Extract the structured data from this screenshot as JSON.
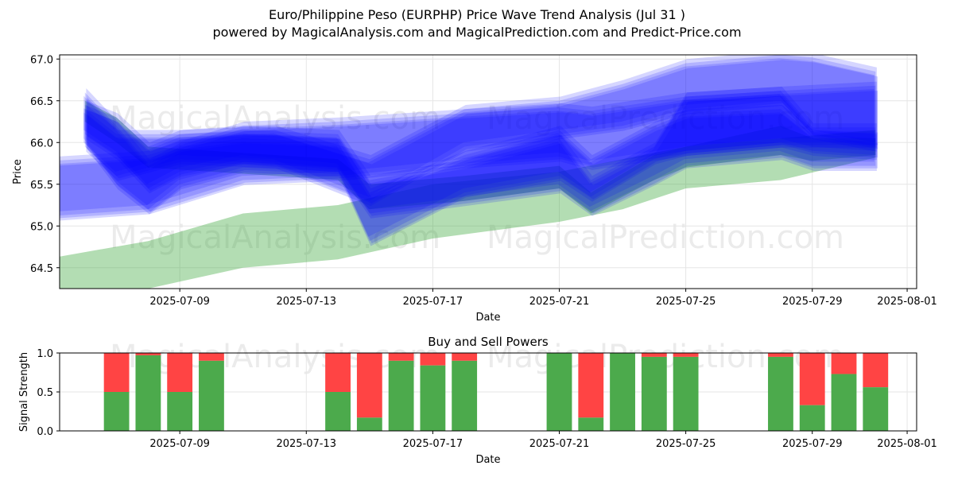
{
  "header": {
    "title": "Euro/Philippine Peso (EURPHP) Price Wave Trend Analysis (Jul 31 )",
    "subtitle": "powered by MagicalAnalysis.com and MagicalPrediction.com and Predict-Price.com"
  },
  "watermarks": [
    "MagicalAnalysis.com",
    "MagicalPrediction.com"
  ],
  "colors": {
    "blue_band": "#0000ff",
    "green_band": "#2ca02c",
    "buy": "#4caa4c",
    "sell": "#ff4444",
    "grid": "#e6e6e6"
  },
  "chart_data": [
    {
      "type": "area",
      "title": "",
      "xlabel": "Date",
      "ylabel": "Price",
      "x_ticks": [
        "2025-07-09",
        "2025-07-13",
        "2025-07-17",
        "2025-07-21",
        "2025-07-25",
        "2025-07-29",
        "2025-08-01"
      ],
      "y_ticks": [
        64.5,
        65.0,
        65.5,
        66.0,
        66.5,
        67.0
      ],
      "xlim": [
        "2025-07-05",
        "2025-08-01"
      ],
      "ylim": [
        64.25,
        67.05
      ],
      "grid": true,
      "series": [
        {
          "color": "blue",
          "x": [
            "2025-07-05",
            "2025-07-08",
            "2025-07-11",
            "2025-07-14",
            "2025-07-18",
            "2025-07-21",
            "2025-07-22",
            "2025-07-25",
            "2025-07-28",
            "2025-07-31"
          ],
          "lower": [
            65.12,
            65.2,
            65.55,
            65.6,
            65.75,
            65.83,
            65.73,
            65.9,
            66.0,
            66.0
          ],
          "upper": [
            65.78,
            65.85,
            66.2,
            66.25,
            66.35,
            66.42,
            66.38,
            66.55,
            66.62,
            66.68
          ]
        },
        {
          "color": "blue",
          "x": [
            "2025-07-06",
            "2025-07-07",
            "2025-07-08",
            "2025-07-09",
            "2025-07-11",
            "2025-07-14",
            "2025-07-15",
            "2025-07-18",
            "2025-07-21",
            "2025-07-22",
            "2025-07-24",
            "2025-07-25",
            "2025-07-28",
            "2025-07-29",
            "2025-07-31"
          ],
          "lower": [
            66.1,
            65.85,
            65.45,
            65.65,
            65.8,
            65.7,
            65.15,
            65.3,
            65.45,
            65.18,
            65.55,
            65.75,
            65.85,
            65.72,
            65.72
          ],
          "upper": [
            66.45,
            66.3,
            65.95,
            66.1,
            66.15,
            66.1,
            65.55,
            65.75,
            66.05,
            65.55,
            65.95,
            66.55,
            66.62,
            66.18,
            66.18
          ]
        },
        {
          "color": "blue",
          "x": [
            "2025-07-06",
            "2025-07-07",
            "2025-07-08",
            "2025-07-09",
            "2025-07-11",
            "2025-07-14",
            "2025-07-15",
            "2025-07-18",
            "2025-07-21",
            "2025-07-22",
            "2025-07-24",
            "2025-07-25",
            "2025-07-28",
            "2025-07-29",
            "2025-07-31"
          ],
          "lower": [
            66.0,
            65.5,
            65.2,
            65.5,
            65.7,
            65.65,
            64.82,
            65.4,
            65.6,
            65.35,
            65.8,
            65.9,
            66.0,
            65.9,
            65.85
          ],
          "upper": [
            66.6,
            66.2,
            65.75,
            65.95,
            66.05,
            66.0,
            65.4,
            65.85,
            66.15,
            65.8,
            66.2,
            66.35,
            66.4,
            66.1,
            66.05
          ]
        },
        {
          "color": "blue",
          "x": [
            "2025-07-06",
            "2025-07-07",
            "2025-07-09",
            "2025-07-12",
            "2025-07-15",
            "2025-07-18",
            "2025-07-21",
            "2025-07-23",
            "2025-07-25",
            "2025-07-28",
            "2025-07-29",
            "2025-07-31"
          ],
          "lower": [
            65.95,
            65.6,
            65.8,
            65.75,
            65.3,
            65.95,
            66.1,
            66.2,
            66.4,
            66.5,
            66.1,
            65.95
          ],
          "upper": [
            66.4,
            66.1,
            66.1,
            66.15,
            65.8,
            66.4,
            66.5,
            66.7,
            66.95,
            67.05,
            67.02,
            66.85
          ]
        },
        {
          "color": "green",
          "x": [
            "2025-07-05",
            "2025-07-08",
            "2025-07-11",
            "2025-07-14",
            "2025-07-17",
            "2025-07-21",
            "2025-07-23",
            "2025-07-25",
            "2025-07-28",
            "2025-07-31"
          ],
          "lower": [
            64.1,
            64.25,
            64.5,
            64.6,
            64.85,
            65.05,
            65.2,
            65.45,
            65.55,
            65.82
          ],
          "upper": [
            64.62,
            64.82,
            65.15,
            65.25,
            65.5,
            65.65,
            65.8,
            65.95,
            66.05,
            66.15
          ]
        },
        {
          "color": "green",
          "x": [
            "2025-07-06",
            "2025-07-07",
            "2025-07-08",
            "2025-07-14",
            "2025-07-15",
            "2025-07-18",
            "2025-07-21",
            "2025-07-22",
            "2025-07-24",
            "2025-07-25",
            "2025-07-28",
            "2025-07-29",
            "2025-07-31"
          ],
          "lower": [
            66.25,
            66.0,
            65.7,
            65.55,
            65.2,
            65.3,
            65.45,
            65.15,
            65.55,
            65.7,
            65.85,
            65.78,
            65.85
          ],
          "upper": [
            66.5,
            66.3,
            65.95,
            65.8,
            65.5,
            65.6,
            65.72,
            65.4,
            65.85,
            65.95,
            66.2,
            66.05,
            66.05
          ]
        }
      ]
    },
    {
      "type": "bar",
      "title": "Buy and Sell Powers",
      "xlabel": "Date",
      "ylabel": "Signal Strength",
      "x_ticks": [
        "2025-07-09",
        "2025-07-13",
        "2025-07-17",
        "2025-07-21",
        "2025-07-25",
        "2025-07-29",
        "2025-08-01"
      ],
      "y_ticks": [
        0.0,
        0.5,
        1.0
      ],
      "ylim": [
        0,
        1.0
      ],
      "grid": true,
      "categories": [
        "2025-07-07",
        "2025-07-08",
        "2025-07-09",
        "2025-07-10",
        "2025-07-14",
        "2025-07-15",
        "2025-07-16",
        "2025-07-17",
        "2025-07-18",
        "2025-07-21",
        "2025-07-22",
        "2025-07-23",
        "2025-07-24",
        "2025-07-25",
        "2025-07-28",
        "2025-07-29",
        "2025-07-30",
        "2025-07-31"
      ],
      "buy": [
        0.5,
        0.97,
        0.5,
        0.9,
        0.5,
        0.17,
        0.9,
        0.84,
        0.9,
        1.0,
        0.17,
        1.0,
        0.95,
        0.95,
        0.95,
        0.33,
        0.73,
        0.56
      ]
    }
  ]
}
